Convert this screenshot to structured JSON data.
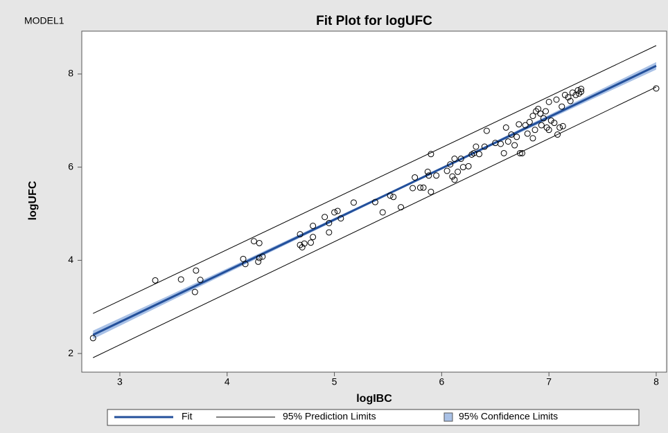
{
  "chart_data": {
    "type": "fit-plot",
    "model_label": "MODEL1",
    "title": "Fit Plot for logUFC",
    "x_label": "logIBC",
    "y_label": "logUFC",
    "xlim": [
      2.645,
      8.097
    ],
    "ylim": [
      1.6,
      8.92
    ],
    "xticks": [
      3,
      4,
      5,
      6,
      7,
      8
    ],
    "yticks": [
      2,
      4,
      6,
      8
    ],
    "points": {
      "x": [
        2.75,
        3.33,
        3.57,
        3.7,
        3.71,
        3.75,
        4.15,
        4.17,
        4.25,
        4.3,
        4.29,
        4.3,
        4.33,
        4.68,
        4.68,
        4.7,
        4.72,
        4.78,
        4.8,
        4.8,
        4.91,
        4.95,
        4.95,
        5.0,
        5.03,
        5.06,
        5.18,
        5.38,
        5.45,
        5.52,
        5.55,
        5.62,
        5.73,
        5.75,
        5.8,
        5.83,
        5.87,
        5.88,
        5.9,
        5.9,
        5.95,
        6.05,
        6.08,
        6.1,
        6.12,
        6.12,
        6.15,
        6.18,
        6.2,
        6.25,
        6.28,
        6.3,
        6.32,
        6.35,
        6.4,
        6.42,
        6.5,
        6.55,
        6.58,
        6.6,
        6.62,
        6.65,
        6.68,
        6.7,
        6.72,
        6.73,
        6.75,
        6.78,
        6.8,
        6.82,
        6.85,
        6.85,
        6.87,
        6.88,
        6.9,
        6.92,
        6.93,
        6.95,
        6.97,
        6.98,
        7.0,
        7.0,
        7.02,
        7.05,
        7.07,
        7.08,
        7.1,
        7.12,
        7.13,
        7.15,
        7.18,
        7.2,
        7.22,
        7.25,
        7.27,
        7.28,
        7.3,
        7.3,
        8.0
      ],
      "y": [
        2.33,
        3.57,
        3.59,
        3.32,
        3.78,
        3.58,
        4.03,
        3.92,
        4.41,
        4.37,
        3.97,
        4.05,
        4.08,
        4.56,
        4.33,
        4.28,
        4.36,
        4.38,
        4.5,
        4.74,
        4.93,
        4.6,
        4.8,
        5.03,
        5.06,
        4.9,
        5.24,
        5.25,
        5.03,
        5.39,
        5.36,
        5.14,
        5.55,
        5.78,
        5.56,
        5.56,
        5.9,
        5.82,
        5.47,
        6.28,
        5.82,
        5.92,
        6.06,
        5.8,
        6.18,
        5.73,
        5.9,
        6.18,
        6.0,
        6.02,
        6.27,
        6.3,
        6.44,
        6.28,
        6.44,
        6.78,
        6.52,
        6.5,
        6.3,
        6.85,
        6.55,
        6.7,
        6.47,
        6.65,
        6.92,
        6.3,
        6.3,
        6.9,
        6.72,
        6.97,
        6.62,
        7.1,
        6.8,
        7.2,
        7.25,
        7.15,
        6.9,
        7.05,
        7.2,
        6.85,
        6.8,
        7.4,
        7.0,
        6.95,
        7.45,
        6.7,
        6.85,
        7.3,
        6.88,
        7.55,
        7.5,
        7.42,
        7.6,
        7.55,
        7.65,
        7.58,
        7.68,
        7.62,
        7.69
      ],
      "color": "#000000"
    },
    "fit": {
      "name": "Fit",
      "color": "#23509b",
      "x": [
        2.75,
        8
      ],
      "y": [
        2.4,
        8.175
      ]
    },
    "prediction_limits": {
      "name": "95% Prediction Limits",
      "color": "#000000",
      "x": [
        2.75,
        8
      ],
      "lower": [
        1.91,
        7.72
      ],
      "upper": [
        2.86,
        8.61
      ]
    },
    "confidence_limits": {
      "name": "95% Confidence Limits",
      "color": "#a9c1e6",
      "x": [
        2.75,
        4,
        5.5,
        6.5,
        8
      ],
      "lower": [
        2.31,
        3.725,
        5.4,
        6.495,
        8.095
      ],
      "upper": [
        2.49,
        3.825,
        5.45,
        6.555,
        8.255
      ]
    }
  }
}
